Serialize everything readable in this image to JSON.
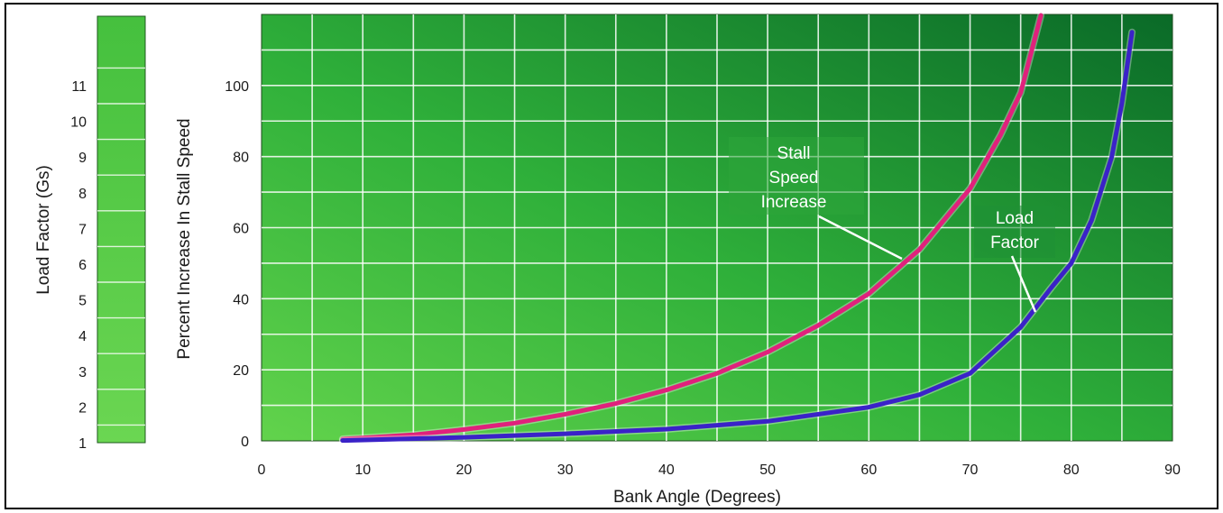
{
  "chart_data": {
    "type": "line",
    "title": "",
    "xlabel": "Bank Angle (Degrees)",
    "ylabel": "Percent Increase In Stall Speed",
    "secondary_ylabel": "Load Factor (Gs)",
    "xlim": [
      0,
      90
    ],
    "ylim": [
      0,
      120
    ],
    "x_ticks": [
      "0",
      "10",
      "20",
      "30",
      "40",
      "50",
      "60",
      "70",
      "80",
      "90"
    ],
    "y_ticks": [
      "0",
      "20",
      "40",
      "60",
      "80",
      "100"
    ],
    "load_factor_ticks": [
      "1",
      "2",
      "3",
      "4",
      "5",
      "6",
      "7",
      "8",
      "9",
      "10",
      "11"
    ],
    "grid": true,
    "colors": {
      "stall": "#e0217c",
      "load": "#3a22c8",
      "background_light": "#5fd24a",
      "background_dark": "#0a6a28"
    },
    "series": [
      {
        "name": "Stall Speed Increase",
        "x": [
          8,
          10,
          15,
          20,
          25,
          30,
          35,
          40,
          45,
          50,
          55,
          60,
          65,
          70,
          73,
          75,
          77
        ],
        "y": [
          0.5,
          0.8,
          1.7,
          3.2,
          5.0,
          7.5,
          10.5,
          14.3,
          19.0,
          25.0,
          32.5,
          41.4,
          53.8,
          71.0,
          86.0,
          98.0,
          120.0
        ]
      },
      {
        "name": "Load Factor",
        "x": [
          8,
          20,
          30,
          40,
          50,
          60,
          65,
          70,
          75,
          78,
          80,
          82,
          84,
          85,
          86
        ],
        "y": [
          0.1,
          1.0,
          2.0,
          3.3,
          5.5,
          9.5,
          13.0,
          19.0,
          32.0,
          43.0,
          50.0,
          62.0,
          80.0,
          95.0,
          115.0
        ]
      }
    ],
    "annotations": [
      {
        "lines": [
          "Stall",
          "Speed",
          "Increase"
        ],
        "target": "Stall Speed Increase"
      },
      {
        "lines": [
          "Load",
          "Factor"
        ],
        "target": "Load Factor"
      }
    ]
  }
}
